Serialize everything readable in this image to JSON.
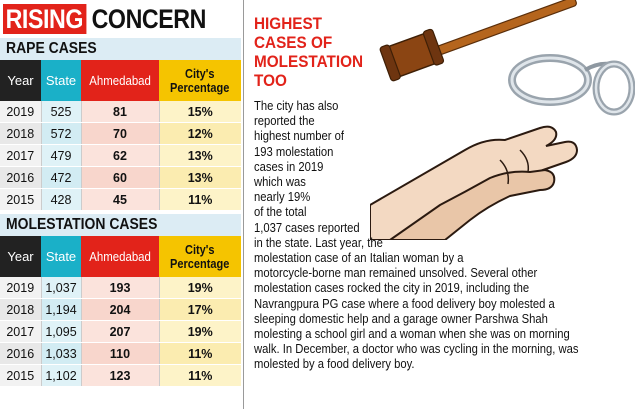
{
  "headline": {
    "highlight": "RISING",
    "rest": "CONCERN"
  },
  "rape_cases": {
    "title": "RAPE CASES",
    "headers": {
      "year": "Year",
      "state": "State",
      "city": "Ahmedabad",
      "pct_line1": "City's",
      "pct_line2": "Percentage"
    },
    "rows": [
      {
        "year": "2019",
        "state": "525",
        "city": "81",
        "pct": "15%"
      },
      {
        "year": "2018",
        "state": "572",
        "city": "70",
        "pct": "12%"
      },
      {
        "year": "2017",
        "state": "479",
        "city": "62",
        "pct": "13%"
      },
      {
        "year": "2016",
        "state": "472",
        "city": "60",
        "pct": "13%"
      },
      {
        "year": "2015",
        "state": "428",
        "city": "45",
        "pct": "11%"
      }
    ]
  },
  "molestation_cases": {
    "title": "MOLESTATION CASES",
    "headers": {
      "year": "Year",
      "state": "State",
      "city": "Ahmedabad",
      "pct_line1": "City's",
      "pct_line2": "Percentage"
    },
    "rows": [
      {
        "year": "2019",
        "state": "1,037",
        "city": "193",
        "pct": "19%"
      },
      {
        "year": "2018",
        "state": "1,194",
        "city": "204",
        "pct": "17%"
      },
      {
        "year": "2017",
        "state": "1,095",
        "city": "207",
        "pct": "19%"
      },
      {
        "year": "2016",
        "state": "1,033",
        "city": "110",
        "pct": "11%"
      },
      {
        "year": "2015",
        "state": "1,102",
        "city": "123",
        "pct": "11%"
      }
    ]
  },
  "story": {
    "title_lines": [
      "HIGHEST",
      "CASES OF",
      "MOLESTATION",
      "TOO"
    ],
    "body_lines": [
      "The city has also",
      "reported the",
      "highest number of",
      "193 molestation",
      "cases in 2019",
      "which was",
      "nearly 19%",
      "of the total",
      "1,037 cases reported",
      "in the state. Last year, the",
      "molestation case of an Italian woman by a",
      "motorcycle-borne man remained unsolved. Several other",
      "molestation cases rocked the city in 2019, including the",
      "Navrangpura PG case where a food delivery boy molested a",
      "sleeping domestic help and a garage owner Parshwa Shah",
      "molesting a school girl and a woman when she was on morning",
      "walk. In December, a doctor who was cycling in the morning, was",
      "molested by a food delivery boy."
    ]
  },
  "colors": {
    "accent_red": "#e2231a",
    "state_cyan": "#1ab0c8",
    "pct_yellow": "#f5c400",
    "year_black": "#222222"
  },
  "illustration": {
    "icons": [
      "gavel-icon",
      "handcuffs-icon",
      "grabbing-hands-icon"
    ]
  }
}
